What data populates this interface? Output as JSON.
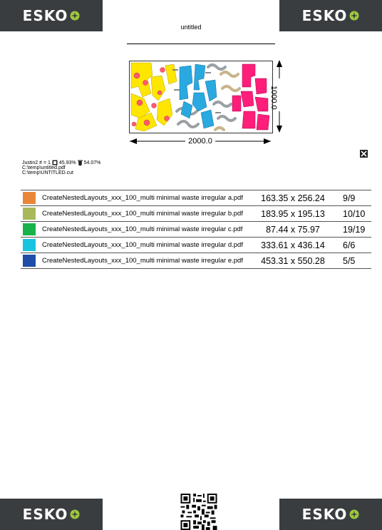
{
  "header": {
    "title": "untitled",
    "logo_text": "ESKO"
  },
  "preview": {
    "width_label": "2000.0",
    "height_label": "1000.0"
  },
  "info": {
    "job_line_prefix": "Justin2 # = 1",
    "used_percent": "45.93%",
    "waste_percent": "54.07%",
    "pdf_path": "C:\\temp\\untitled.pdf",
    "cut_path": "C:\\temp\\UNTITLED.cut"
  },
  "files": [
    {
      "name": "CreateNestedLayouts_xxx_100_multi minimal waste irregular a.pdf",
      "size": "163.35 x 256.24",
      "count": "9/9",
      "color": "#e8873a"
    },
    {
      "name": "CreateNestedLayouts_xxx_100_multi minimal waste irregular b.pdf",
      "size": "183.95 x 195.13",
      "count": "10/10",
      "color": "#a8b85a"
    },
    {
      "name": "CreateNestedLayouts_xxx_100_multi minimal waste irregular c.pdf",
      "size": "87.44 x 75.97",
      "count": "19/19",
      "color": "#18b24a"
    },
    {
      "name": "CreateNestedLayouts_xxx_100_multi minimal waste irregular d.pdf",
      "size": "333.61 x 436.14",
      "count": "6/6",
      "color": "#16c4e0"
    },
    {
      "name": "CreateNestedLayouts_xxx_100_multi minimal waste irregular e.pdf",
      "size": "453.31 x 550.28",
      "count": "5/5",
      "color": "#1f4ea8"
    }
  ],
  "colors": {
    "logo_bg": "#3a3d40",
    "logo_accent": "#9fc93c",
    "piece_yellow": "#ffe600",
    "piece_pink": "#ff1f7a",
    "piece_cyan": "#29a9df",
    "piece_gray": "#9aa0a4",
    "piece_tan": "#c9b48a"
  },
  "icons": [
    "esko-logo",
    "document-icon",
    "trash-icon",
    "x-box-icon",
    "qr-code"
  ]
}
